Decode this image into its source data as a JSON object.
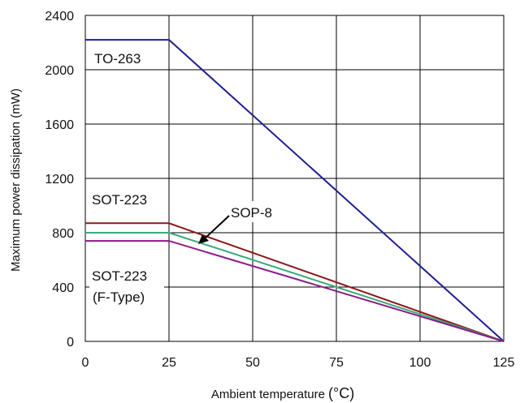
{
  "chart_data": {
    "type": "line",
    "title": "",
    "xlabel": "Ambient temperature",
    "xunit": "(°C)",
    "ylabel": "Maximum power dissipation (mW)",
    "xlim": [
      0,
      125
    ],
    "ylim": [
      0,
      2400
    ],
    "xticks": [
      "0",
      "25",
      "50",
      "75",
      "100",
      "125"
    ],
    "yticks": [
      "0",
      "400",
      "800",
      "1200",
      "1600",
      "2000",
      "2400"
    ],
    "grid": true,
    "series": [
      {
        "name": "TO-263",
        "color": "#1f1f8f",
        "x": [
          0,
          25,
          125
        ],
        "y": [
          2220,
          2220,
          0
        ]
      },
      {
        "name": "SOT-223",
        "color": "#8b1a1a",
        "x": [
          0,
          25,
          125
        ],
        "y": [
          870,
          870,
          0
        ]
      },
      {
        "name": "SOP-8",
        "color": "#3aaa7a",
        "x": [
          0,
          25,
          125
        ],
        "y": [
          800,
          800,
          0
        ]
      },
      {
        "name": "SOT-223 (F-Type)",
        "color": "#8a1a8a",
        "x": [
          0,
          25,
          125
        ],
        "y": [
          740,
          740,
          0
        ]
      }
    ],
    "annotations": {
      "to263": "TO-263",
      "sot223": "SOT-223",
      "sop8": "SOP-8",
      "sot223f_line1": "SOT-223",
      "sot223f_line2": "(F-Type)"
    }
  }
}
